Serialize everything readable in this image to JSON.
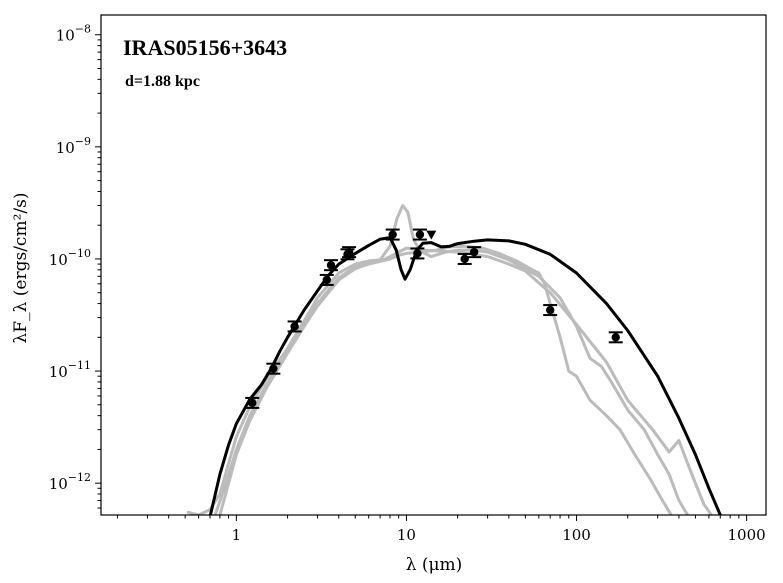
{
  "chart_data": {
    "type": "scatter",
    "title": "IRAS05156+3643",
    "subtitle": "d=1.88 kpc",
    "xlabel": "λ (μm)",
    "ylabel": "λF_λ (ergs/cm²/s)",
    "xscale": "log",
    "yscale": "log",
    "xlim": [
      0.16,
      1300
    ],
    "ylim": [
      5.2e-13,
      1.5e-08
    ],
    "x_ticks": [
      {
        "value": 1,
        "label": "1"
      },
      {
        "value": 10,
        "label": "10"
      },
      {
        "value": 100,
        "label": "100"
      },
      {
        "value": 1000,
        "label": "1000"
      }
    ],
    "y_ticks": [
      {
        "value": 1e-12,
        "base": "10",
        "exp": "−12"
      },
      {
        "value": 1e-11,
        "base": "10",
        "exp": "−11"
      },
      {
        "value": 1e-10,
        "base": "10",
        "exp": "−10"
      },
      {
        "value": 1e-09,
        "base": "10",
        "exp": "−9"
      },
      {
        "value": 1e-08,
        "base": "10",
        "exp": "−8"
      }
    ],
    "grid": false,
    "observed_points": [
      {
        "x": 1.24,
        "y": 5.2e-12
      },
      {
        "x": 1.65,
        "y": 1.05e-11
      },
      {
        "x": 2.2,
        "y": 2.5e-11
      },
      {
        "x": 3.4,
        "y": 6.5e-11
      },
      {
        "x": 3.6,
        "y": 8.8e-11
      },
      {
        "x": 4.5,
        "y": 1.1e-10
      },
      {
        "x": 4.6,
        "y": 1.15e-10
      },
      {
        "x": 8.3,
        "y": 1.65e-10
      },
      {
        "x": 11.6,
        "y": 1.12e-10
      },
      {
        "x": 12,
        "y": 1.65e-10
      },
      {
        "x": 22,
        "y": 1e-10
      },
      {
        "x": 25,
        "y": 1.15e-10
      },
      {
        "x": 70,
        "y": 3.5e-11
      },
      {
        "x": 170,
        "y": 2e-11
      }
    ],
    "upper_limits": [
      {
        "x": 14,
        "y": 1.65e-10
      }
    ],
    "series": [
      {
        "color": "#000000",
        "points": [
          [
            0.7,
            5e-13
          ],
          [
            0.8,
            1.2e-12
          ],
          [
            0.9,
            2.2e-12
          ],
          [
            1.0,
            3.4e-12
          ],
          [
            1.2,
            5.6e-12
          ],
          [
            1.4,
            7.5e-12
          ],
          [
            1.6,
            1.05e-11
          ],
          [
            1.8,
            1.5e-11
          ],
          [
            2.0,
            2e-11
          ],
          [
            2.5,
            3.5e-11
          ],
          [
            3.0,
            5.2e-11
          ],
          [
            3.5,
            7.2e-11
          ],
          [
            4.0,
            9e-11
          ],
          [
            5.0,
            1.12e-10
          ],
          [
            6.0,
            1.32e-10
          ],
          [
            7.0,
            1.5e-10
          ],
          [
            8.0,
            1.55e-10
          ],
          [
            8.7,
            1.2e-10
          ],
          [
            9.3,
            8e-11
          ],
          [
            9.8,
            6.6e-11
          ],
          [
            10.5,
            8e-11
          ],
          [
            11.5,
            1.2e-10
          ],
          [
            12.5,
            1.38e-10
          ],
          [
            14,
            1.4e-10
          ],
          [
            16,
            1.28e-10
          ],
          [
            18,
            1.3e-10
          ],
          [
            20,
            1.37e-10
          ],
          [
            25,
            1.44e-10
          ],
          [
            30,
            1.48e-10
          ],
          [
            40,
            1.45e-10
          ],
          [
            50,
            1.35e-10
          ],
          [
            70,
            1.1e-10
          ],
          [
            100,
            7.5e-11
          ],
          [
            150,
            4e-11
          ],
          [
            200,
            2.3e-11
          ],
          [
            300,
            9e-12
          ],
          [
            400,
            3.8e-12
          ],
          [
            500,
            1.8e-12
          ],
          [
            600,
            9e-13
          ],
          [
            700,
            5.2e-13
          ]
        ]
      },
      {
        "color": "#bbbbbb",
        "points": [
          [
            0.52,
            5.5e-13
          ],
          [
            0.6,
            5.2e-13
          ],
          [
            0.7,
            5.8e-13
          ],
          [
            0.8,
            8e-13
          ],
          [
            0.9,
            1.5e-12
          ],
          [
            1.0,
            2.6e-12
          ],
          [
            1.2,
            4.8e-12
          ],
          [
            1.5,
            8.5e-12
          ],
          [
            2.0,
            1.6e-11
          ],
          [
            2.5,
            2.8e-11
          ],
          [
            3.0,
            4.5e-11
          ],
          [
            4.0,
            7.5e-11
          ],
          [
            5.0,
            9e-11
          ],
          [
            6.0,
            9.6e-11
          ],
          [
            7.0,
            9.8e-11
          ],
          [
            8.0,
            1.3e-10
          ],
          [
            8.8,
            2.3e-10
          ],
          [
            9.5,
            3e-10
          ],
          [
            10.2,
            2.6e-10
          ],
          [
            11,
            1.5e-10
          ],
          [
            12,
            1.18e-10
          ],
          [
            14,
            1.05e-10
          ],
          [
            17,
            1.15e-10
          ],
          [
            20,
            1.2e-10
          ],
          [
            25,
            1.2e-10
          ],
          [
            30,
            1.15e-10
          ],
          [
            40,
            9.8e-11
          ],
          [
            60,
            7e-11
          ],
          [
            80,
            4.5e-11
          ],
          [
            100,
            2.5e-11
          ],
          [
            120,
            1.3e-11
          ],
          [
            140,
            1.1e-11
          ],
          [
            160,
            8e-12
          ],
          [
            200,
            4.5e-12
          ],
          [
            250,
            3e-12
          ],
          [
            300,
            1.8e-12
          ],
          [
            350,
            1.2e-12
          ],
          [
            400,
            7e-13
          ],
          [
            450,
            5.2e-13
          ]
        ]
      },
      {
        "color": "#bbbbbb",
        "points": [
          [
            0.75,
            5.2e-13
          ],
          [
            0.85,
            9e-13
          ],
          [
            1.0,
            2e-12
          ],
          [
            1.2,
            4e-12
          ],
          [
            1.5,
            7.5e-12
          ],
          [
            2.0,
            1.5e-11
          ],
          [
            2.5,
            2.6e-11
          ],
          [
            3.0,
            4e-11
          ],
          [
            4.0,
            6.8e-11
          ],
          [
            5.0,
            8.5e-11
          ],
          [
            6.0,
            9.2e-11
          ],
          [
            7.0,
            9.5e-11
          ],
          [
            8.0,
            1e-10
          ],
          [
            9.0,
            1.08e-10
          ],
          [
            10,
            1.12e-10
          ],
          [
            12,
            1.15e-10
          ],
          [
            15,
            1.2e-10
          ],
          [
            18,
            1.28e-10
          ],
          [
            22,
            1.3e-10
          ],
          [
            28,
            1.25e-10
          ],
          [
            35,
            1.12e-10
          ],
          [
            45,
            9.5e-11
          ],
          [
            55,
            8e-11
          ],
          [
            60,
            7.5e-11
          ],
          [
            65,
            6e-11
          ],
          [
            70,
            4e-11
          ],
          [
            80,
            2e-11
          ],
          [
            90,
            1e-11
          ],
          [
            100,
            9e-12
          ],
          [
            120,
            5.5e-12
          ],
          [
            150,
            4e-12
          ],
          [
            180,
            3e-12
          ],
          [
            220,
            1.8e-12
          ],
          [
            270,
            1.1e-12
          ],
          [
            320,
            7e-13
          ],
          [
            360,
            5.2e-13
          ]
        ]
      },
      {
        "color": "#bbbbbb",
        "points": [
          [
            0.8,
            5.2e-13
          ],
          [
            0.9,
            1e-12
          ],
          [
            1.0,
            1.8e-12
          ],
          [
            1.2,
            3.6e-12
          ],
          [
            1.5,
            7e-12
          ],
          [
            2.0,
            1.45e-11
          ],
          [
            2.5,
            2.5e-11
          ],
          [
            3.0,
            3.8e-11
          ],
          [
            4.0,
            6.5e-11
          ],
          [
            5.0,
            8.2e-11
          ],
          [
            6.0,
            9e-11
          ],
          [
            7.0,
            9.5e-11
          ],
          [
            8.0,
            1.05e-10
          ],
          [
            9.0,
            1.15e-10
          ],
          [
            10,
            1.25e-10
          ],
          [
            12,
            1.2e-10
          ],
          [
            15,
            1.18e-10
          ],
          [
            20,
            1.15e-10
          ],
          [
            25,
            1.1e-10
          ],
          [
            30,
            1.05e-10
          ],
          [
            40,
            9e-11
          ],
          [
            50,
            7.8e-11
          ],
          [
            70,
            5e-11
          ],
          [
            100,
            2.6e-11
          ],
          [
            150,
            1.2e-11
          ],
          [
            200,
            5.5e-12
          ],
          [
            280,
            3e-12
          ],
          [
            350,
            1.9e-12
          ],
          [
            400,
            2.4e-12
          ],
          [
            450,
            1.5e-12
          ],
          [
            500,
            1e-12
          ],
          [
            560,
            6.5e-13
          ],
          [
            620,
            5.2e-13
          ]
        ]
      }
    ]
  }
}
